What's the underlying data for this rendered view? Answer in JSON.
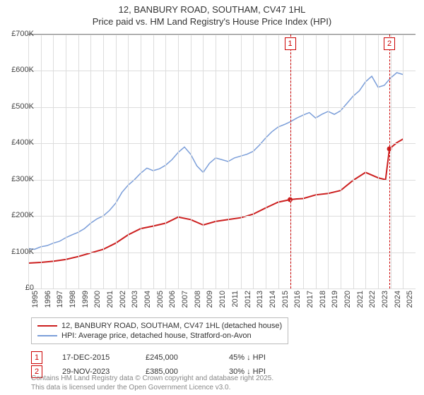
{
  "title": {
    "line1": "12, BANBURY ROAD, SOUTHAM, CV47 1HL",
    "line2": "Price paid vs. HM Land Registry's House Price Index (HPI)"
  },
  "chart": {
    "type": "line",
    "x_domain": [
      1995,
      2026
    ],
    "y_domain": [
      0,
      700000
    ],
    "ytick_step": 100000,
    "ytick_labels": [
      "£0",
      "£100K",
      "£200K",
      "£300K",
      "£400K",
      "£500K",
      "£600K",
      "£700K"
    ],
    "xtick_step": 1,
    "xtick_labels": [
      "1995",
      "1996",
      "1997",
      "1998",
      "1999",
      "2000",
      "2001",
      "2002",
      "2003",
      "2004",
      "2005",
      "2006",
      "2007",
      "2008",
      "2009",
      "2010",
      "2011",
      "2012",
      "2013",
      "2014",
      "2015",
      "2016",
      "2017",
      "2018",
      "2019",
      "2020",
      "2021",
      "2022",
      "2023",
      "2024",
      "2025"
    ],
    "background_color": "#ffffff",
    "grid_color": "#dddddd",
    "axis_color": "#888888",
    "label_fontsize": 11,
    "title_fontsize": 13,
    "series": [
      {
        "name": "price_paid",
        "label": "12, BANBURY ROAD, SOUTHAM, CV47 1HL (detached house)",
        "color": "#cc1f1f",
        "line_width": 2,
        "points": [
          [
            1995,
            70000
          ],
          [
            1996,
            72000
          ],
          [
            1997,
            75000
          ],
          [
            1998,
            80000
          ],
          [
            1999,
            88000
          ],
          [
            2000,
            98000
          ],
          [
            2001,
            108000
          ],
          [
            2002,
            125000
          ],
          [
            2003,
            148000
          ],
          [
            2004,
            165000
          ],
          [
            2005,
            172000
          ],
          [
            2006,
            180000
          ],
          [
            2007,
            197000
          ],
          [
            2008,
            190000
          ],
          [
            2009,
            175000
          ],
          [
            2010,
            185000
          ],
          [
            2011,
            190000
          ],
          [
            2012,
            195000
          ],
          [
            2013,
            205000
          ],
          [
            2014,
            222000
          ],
          [
            2015,
            238000
          ],
          [
            2015.96,
            245000
          ],
          [
            2016.5,
            247000
          ],
          [
            2017,
            248000
          ],
          [
            2018,
            258000
          ],
          [
            2019,
            262000
          ],
          [
            2020,
            270000
          ],
          [
            2021,
            298000
          ],
          [
            2022,
            320000
          ],
          [
            2023,
            305000
          ],
          [
            2023.6,
            300000
          ],
          [
            2023.91,
            385000
          ],
          [
            2024.5,
            402000
          ],
          [
            2025,
            412000
          ]
        ]
      },
      {
        "name": "hpi",
        "label": "HPI: Average price, detached house, Stratford-on-Avon",
        "color": "#7b9ed9",
        "line_width": 1.5,
        "points": [
          [
            1995,
            110000
          ],
          [
            1995.5,
            108000
          ],
          [
            1996,
            115000
          ],
          [
            1996.5,
            118000
          ],
          [
            1997,
            125000
          ],
          [
            1997.5,
            130000
          ],
          [
            1998,
            140000
          ],
          [
            1998.5,
            148000
          ],
          [
            1999,
            155000
          ],
          [
            1999.5,
            165000
          ],
          [
            2000,
            180000
          ],
          [
            2000.5,
            192000
          ],
          [
            2001,
            200000
          ],
          [
            2001.5,
            215000
          ],
          [
            2002,
            235000
          ],
          [
            2002.5,
            265000
          ],
          [
            2003,
            285000
          ],
          [
            2003.5,
            300000
          ],
          [
            2004,
            318000
          ],
          [
            2004.5,
            332000
          ],
          [
            2005,
            325000
          ],
          [
            2005.5,
            330000
          ],
          [
            2006,
            340000
          ],
          [
            2006.5,
            355000
          ],
          [
            2007,
            375000
          ],
          [
            2007.5,
            390000
          ],
          [
            2008,
            370000
          ],
          [
            2008.5,
            338000
          ],
          [
            2009,
            320000
          ],
          [
            2009.5,
            345000
          ],
          [
            2010,
            360000
          ],
          [
            2010.5,
            355000
          ],
          [
            2011,
            350000
          ],
          [
            2011.5,
            360000
          ],
          [
            2012,
            365000
          ],
          [
            2012.5,
            370000
          ],
          [
            2013,
            378000
          ],
          [
            2013.5,
            395000
          ],
          [
            2014,
            415000
          ],
          [
            2014.5,
            432000
          ],
          [
            2015,
            445000
          ],
          [
            2015.5,
            452000
          ],
          [
            2016,
            460000
          ],
          [
            2016.5,
            470000
          ],
          [
            2017,
            478000
          ],
          [
            2017.5,
            485000
          ],
          [
            2018,
            470000
          ],
          [
            2018.5,
            480000
          ],
          [
            2019,
            488000
          ],
          [
            2019.5,
            480000
          ],
          [
            2020,
            490000
          ],
          [
            2020.5,
            510000
          ],
          [
            2021,
            530000
          ],
          [
            2021.5,
            545000
          ],
          [
            2022,
            570000
          ],
          [
            2022.5,
            585000
          ],
          [
            2023,
            555000
          ],
          [
            2023.5,
            560000
          ],
          [
            2024,
            580000
          ],
          [
            2024.5,
            595000
          ],
          [
            2025,
            590000
          ]
        ]
      }
    ],
    "markers": [
      {
        "id": "1",
        "x": 2015.96
      },
      {
        "id": "2",
        "x": 2023.91
      }
    ]
  },
  "legend": {
    "items": [
      {
        "label": "12, BANBURY ROAD, SOUTHAM, CV47 1HL (detached house)",
        "color": "#cc1f1f",
        "weight": 2
      },
      {
        "label": "HPI: Average price, detached house, Stratford-on-Avon",
        "color": "#7b9ed9",
        "weight": 1.5
      }
    ]
  },
  "sales": [
    {
      "id": "1",
      "date": "17-DEC-2015",
      "price": "£245,000",
      "delta": "45% ↓ HPI"
    },
    {
      "id": "2",
      "date": "29-NOV-2023",
      "price": "£385,000",
      "delta": "30% ↓ HPI"
    }
  ],
  "attribution": {
    "line1": "Contains HM Land Registry data © Crown copyright and database right 2025.",
    "line2": "This data is licensed under the Open Government Licence v3.0."
  }
}
